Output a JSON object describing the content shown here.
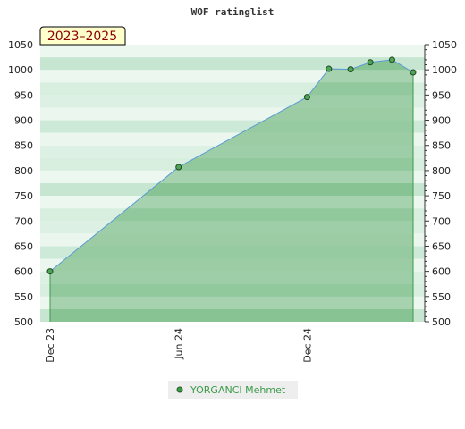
{
  "chart_data": {
    "type": "area",
    "title": "WOF ratinglist",
    "period_label": "2023–2025",
    "x_ticks": [
      "Dec 23",
      "Jun 24",
      "Dec 24"
    ],
    "ylim": [
      500,
      1050
    ],
    "y_ticks": [
      500,
      550,
      600,
      650,
      700,
      750,
      800,
      850,
      900,
      950,
      1000,
      1050
    ],
    "grid": false,
    "legend_position": "bottom",
    "series": [
      {
        "name": "YORGANCI Mehmet",
        "color": "#3c9a4a",
        "line_color": "#5b9bd5",
        "x": [
          "2023-12",
          "2024-06",
          "2024-12",
          "2025-01",
          "2025-02",
          "2025-03",
          "2025-04",
          "2025-05"
        ],
        "values": [
          600,
          807,
          946,
          1002,
          1001,
          1015,
          1020,
          995
        ]
      }
    ]
  }
}
